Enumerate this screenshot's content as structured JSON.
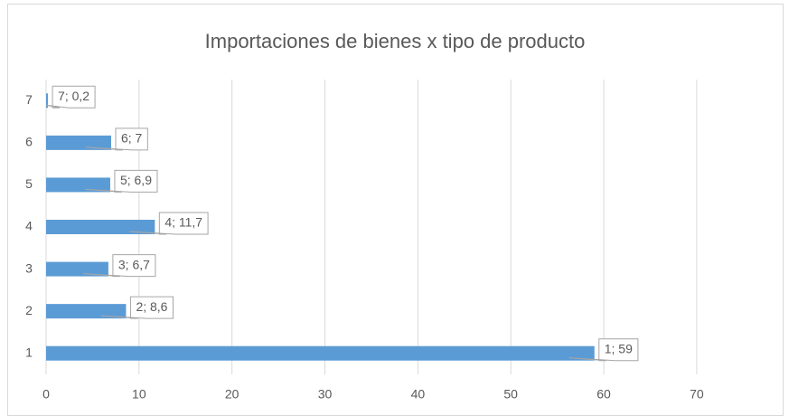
{
  "chart_data": {
    "type": "bar",
    "orientation": "horizontal",
    "title": "Importaciones de bienes x tipo de producto",
    "categories": [
      "1",
      "2",
      "3",
      "4",
      "5",
      "6",
      "7"
    ],
    "values": [
      59,
      8.6,
      6.7,
      11.7,
      6.9,
      7,
      0.2
    ],
    "value_labels": [
      "1; 59",
      "2; 8,6",
      "3; 6,7",
      "4; 11,7",
      "5; 6,9",
      "6; 7",
      "7; 0,2"
    ],
    "color": "#5b9bd5",
    "xlim": [
      0,
      77.5
    ],
    "xticks": [
      0,
      10,
      20,
      30,
      40,
      50,
      60,
      70
    ],
    "grid": true
  }
}
